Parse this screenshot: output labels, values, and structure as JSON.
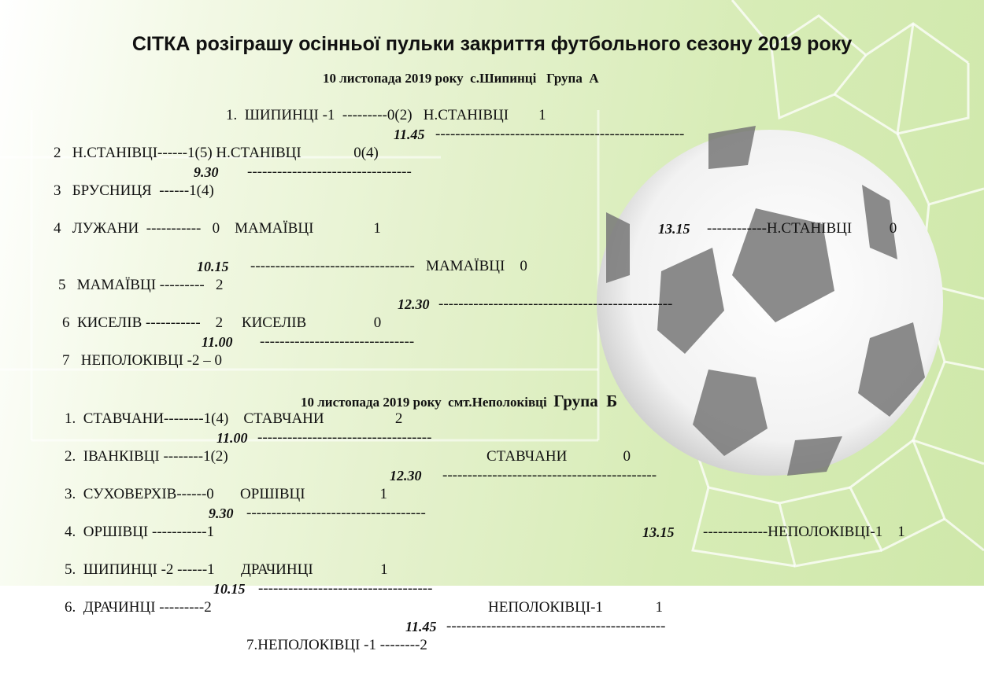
{
  "title": "СІТКА розіграшу осінньої пульки закриття футбольного сезону 2019 року",
  "group_a": {
    "subtitle": "10 листопада 2019 року  с.Шипинці   Група  А",
    "lines": [
      "1.  ШИПИНЦІ -1  ---------0(2)   Н.СТАНІВЦІ        1",
      "2   Н.СТАНІВЦІ------1(5) Н.СТАНІВЦІ              0(4)",
      "3   БРУСНИЦЯ  ------1(4)",
      "4   ЛУЖАНИ  -----------   0    МАМАЇВЦІ                1",
      "---------------------------------   МАМАЇВЦІ    0",
      "5   МАМАЇВЦІ ---------   2",
      "6  КИСЕЛІВ -----------    2     КИСЕЛІВ                  0",
      "7   НЕПОЛОКІВЦІ -2 – 0"
    ],
    "times": [
      "11.45",
      "9.30",
      "10.15",
      "12.30",
      "11.00",
      "13.15"
    ],
    "connectors": [
      "--------------------------------------------------",
      "---------------------------------",
      "-----------------------------------------------",
      "-------------------------------",
      "------------Н.СТАНІВЦІ          0"
    ]
  },
  "group_b": {
    "subtitle_prefix": "10 листопада 2019 року  смт.Неполоківці",
    "subtitle_group": "Група  Б",
    "lines": [
      "1.  СТАВЧАНИ--------1(4)    СТАВЧАНИ                   2",
      "2.  ІВАНКІВЦІ --------1(2)",
      "СТАВЧАНИ               0",
      "3.  СУХОВЕРХІВ------0       ОРШІВЦІ                    1",
      "4.  ОРШІВЦІ -----------1",
      "5.  ШИПИНЦІ -2 ------1       ДРАЧИНЦІ                  1",
      "6.  ДРАЧИНЦІ ---------2",
      "НЕПОЛОКІВЦІ-1              1",
      "7.НЕПОЛОКІВЦІ -1 --------2"
    ],
    "times": [
      "11.00",
      "12.30",
      "9.30",
      "13.15",
      "10.15",
      "11.45"
    ],
    "connectors": [
      "-----------------------------------",
      "-------------------------------------------",
      "------------------------------------",
      "-------------НЕПОЛОКІВЦІ-1    1",
      "-----------------------------------",
      "--------------------------------------------"
    ]
  }
}
